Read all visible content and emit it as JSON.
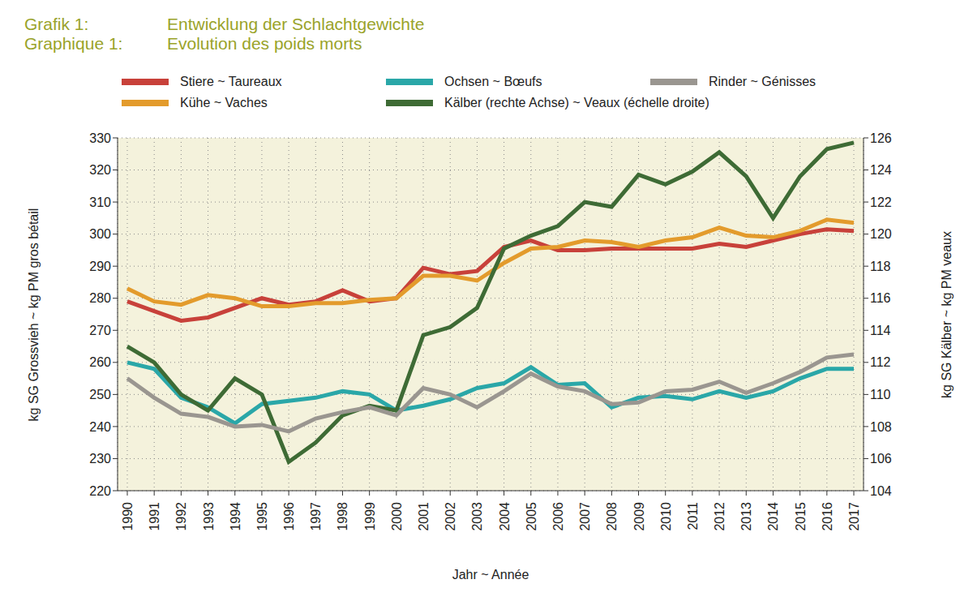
{
  "chart_data": {
    "type": "line",
    "title": "Grafik 1: Entwicklung der Schlachtgewichte",
    "subtitle": "Graphique 1: Evolution des poids morts",
    "x_label": "Jahr ~ Année",
    "y_label": "kg SG Grossvieh ~ kg PM gros bétail",
    "y2_label": "kg SG Kälber ~ kg PM veaux",
    "x": [
      1990,
      1991,
      1992,
      1993,
      1994,
      1995,
      1996,
      1997,
      1998,
      1999,
      2000,
      2001,
      2002,
      2003,
      2004,
      2005,
      2006,
      2007,
      2008,
      2009,
      2010,
      2011,
      2012,
      2013,
      2014,
      2015,
      2016,
      2017
    ],
    "ylim": [
      220,
      330
    ],
    "yticks": [
      220,
      230,
      240,
      250,
      260,
      270,
      280,
      290,
      300,
      310,
      320,
      330
    ],
    "y2lim": [
      104,
      126
    ],
    "y2ticks": [
      104,
      106,
      108,
      110,
      112,
      114,
      116,
      118,
      120,
      122,
      124,
      126
    ],
    "grid": true,
    "legend": "top",
    "series": [
      {
        "name": "Stiere ~ Taureaux",
        "color": "#c8413a",
        "values": [
          279,
          276,
          273,
          274,
          277,
          280,
          278,
          279,
          282.5,
          279,
          280,
          289.5,
          287.5,
          288.5,
          296,
          298,
          295,
          295,
          295.5,
          295.5,
          295.5,
          295.5,
          297,
          296,
          298,
          300,
          301.5,
          301
        ]
      },
      {
        "name": "Kühe ~ Vaches",
        "color": "#e39b2c",
        "values": [
          283,
          279,
          278,
          281,
          280,
          277.5,
          277.5,
          278.5,
          278.5,
          279.5,
          280,
          287,
          287,
          285.5,
          291,
          295.5,
          296,
          298,
          297.5,
          296,
          298,
          299,
          302,
          299.5,
          299,
          301,
          304.5,
          303.5
        ]
      },
      {
        "name": "Ochsen ~ Bœufs",
        "color": "#2aa7a8",
        "values": [
          260,
          258,
          249,
          246,
          241,
          247,
          248,
          249,
          251,
          250,
          245,
          246.5,
          248.5,
          252,
          253.5,
          258.5,
          253,
          253.5,
          246,
          249,
          249.5,
          248.5,
          251,
          249,
          251,
          255,
          258,
          258
        ]
      },
      {
        "name": "Kälber (rechte Achse) ~ Veaux (échelle droite)",
        "color": "#3e6b35",
        "axis": "y2",
        "values": [
          113,
          112,
          110,
          109,
          111,
          110,
          105.8,
          107,
          108.7,
          109.3,
          109,
          113.7,
          114.2,
          115.4,
          119.1,
          119.9,
          120.5,
          122,
          121.7,
          123.7,
          123.1,
          123.9,
          125.1,
          123.6,
          121,
          123.6,
          125.3,
          125.7
        ]
      },
      {
        "name": "Rinder ~ Génisses",
        "color": "#9a9690",
        "values": [
          255,
          249,
          244,
          243,
          240,
          240.5,
          238.5,
          242.5,
          244.5,
          246,
          243.5,
          252,
          250,
          246,
          251,
          256.5,
          252.5,
          251,
          247,
          247.5,
          251,
          251.5,
          254,
          250.5,
          253.5,
          257,
          261.5,
          262.5
        ]
      }
    ]
  }
}
